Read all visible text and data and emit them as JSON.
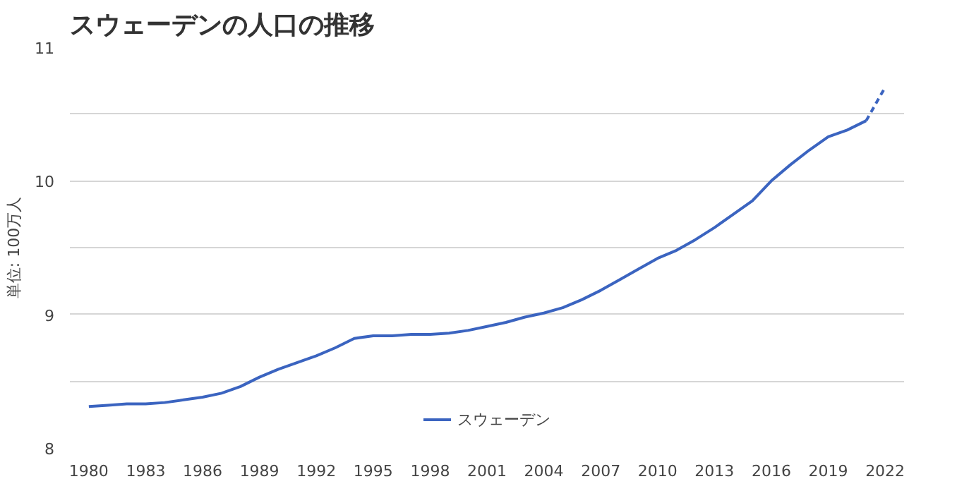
{
  "chart_data": {
    "type": "line",
    "title": "スウェーデンの人口の推移",
    "ylabel": "単位: 100万人",
    "x": [
      1980,
      1981,
      1982,
      1983,
      1984,
      1985,
      1986,
      1987,
      1988,
      1989,
      1990,
      1991,
      1992,
      1993,
      1994,
      1995,
      1996,
      1997,
      1998,
      1999,
      2000,
      2001,
      2002,
      2003,
      2004,
      2005,
      2006,
      2007,
      2008,
      2009,
      2010,
      2011,
      2012,
      2013,
      2014,
      2015,
      2016,
      2017,
      2018,
      2019,
      2020,
      2021
    ],
    "series": [
      {
        "name": "スウェーデン",
        "color": "#3b64c0",
        "values": [
          8.31,
          8.32,
          8.33,
          8.33,
          8.34,
          8.36,
          8.38,
          8.41,
          8.46,
          8.53,
          8.59,
          8.64,
          8.69,
          8.75,
          8.82,
          8.84,
          8.84,
          8.85,
          8.85,
          8.86,
          8.88,
          8.91,
          8.94,
          8.98,
          9.01,
          9.05,
          9.11,
          9.18,
          9.26,
          9.34,
          9.42,
          9.48,
          9.56,
          9.65,
          9.75,
          9.85,
          10.0,
          10.12,
          10.23,
          10.33,
          10.38,
          10.45
        ]
      },
      {
        "color": "#3b64c0",
        "line_style": "dashed",
        "x": [
          2021,
          2022
        ],
        "values": [
          10.45,
          10.7
        ]
      }
    ],
    "xlim": [
      1979,
      2023
    ],
    "xticks": [
      1980,
      1983,
      1986,
      1989,
      1992,
      1995,
      1998,
      2001,
      2004,
      2007,
      2010,
      2013,
      2016,
      2019,
      2022
    ],
    "ylim": [
      8,
      11
    ],
    "yticks": [
      8,
      {
        "value": 8.5,
        "label": null
      },
      9,
      {
        "value": 9.5,
        "label": null
      },
      10,
      {
        "value": 10.5,
        "label": null
      },
      11
    ],
    "grid": "y",
    "legend": "bottom",
    "line_style": "solid",
    "marker": "none"
  }
}
